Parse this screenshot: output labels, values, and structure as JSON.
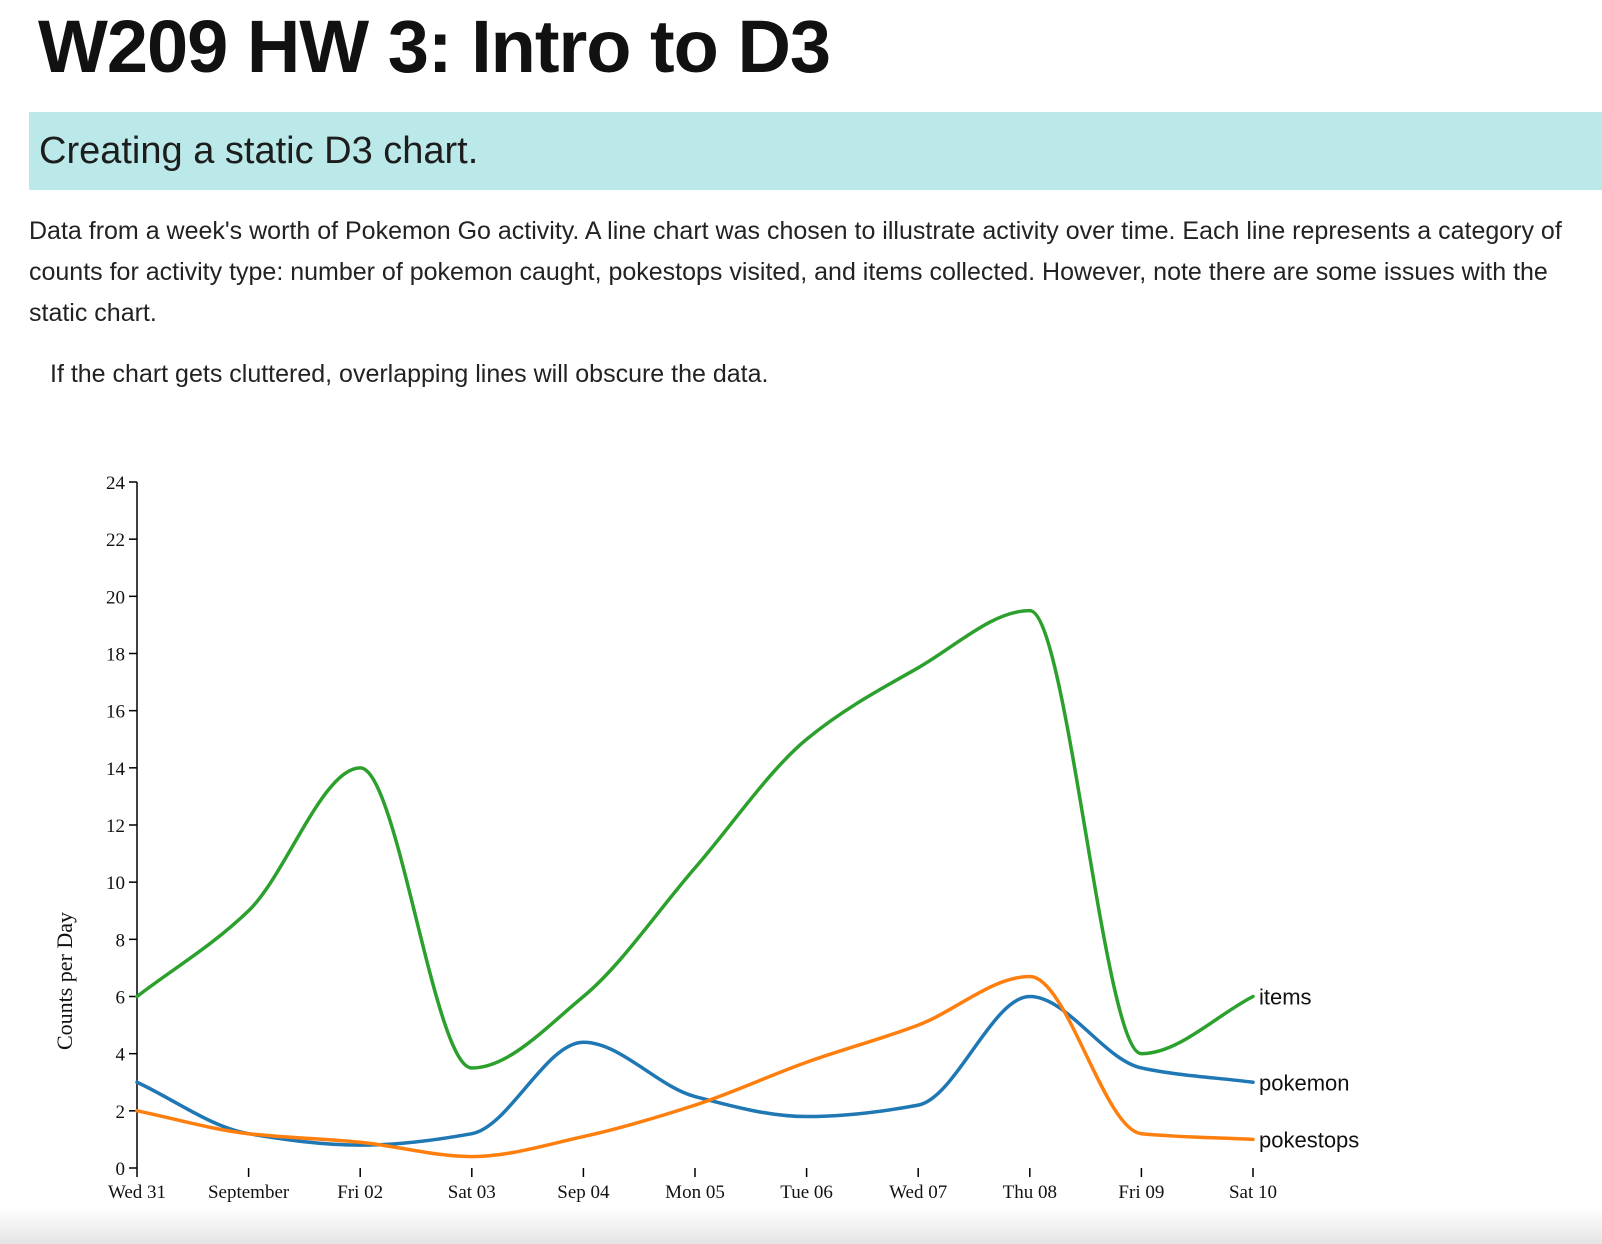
{
  "page": {
    "title": "W209 HW 3: Intro to D3",
    "subtitle": "Creating a static D3 chart.",
    "description": "Data from a week's worth of Pokemon Go activity. A line chart was chosen to illustrate activity over time. Each line represents a category of counts for activity type: number of pokemon caught, pokestops visited, and items collected. However, note there are some issues with the static chart.",
    "note": "If the chart gets cluttered, overlapping lines will obscure the data."
  },
  "chart_data": {
    "type": "line",
    "title": "",
    "xlabel": "",
    "ylabel": "Counts per Day",
    "x_tick_labels": [
      "Wed 31",
      "September",
      "Fri 02",
      "Sat 03",
      "Sep 04",
      "Mon 05",
      "Tue 06",
      "Wed 07",
      "Thu 08",
      "Fri 09",
      "Sat 10"
    ],
    "y_ticks": [
      0,
      2,
      4,
      6,
      8,
      10,
      12,
      14,
      16,
      18,
      20,
      22,
      24
    ],
    "ylim": [
      0,
      24
    ],
    "x": [
      "Aug 31",
      "Sep 01",
      "Sep 02",
      "Sep 03",
      "Sep 04",
      "Sep 05",
      "Sep 06",
      "Sep 07",
      "Sep 08",
      "Sep 09",
      "Sep 10"
    ],
    "grid": false,
    "legend": "end-of-line labels",
    "series": [
      {
        "name": "items",
        "color": "#2ca02c",
        "values": [
          6,
          9,
          14,
          3.5,
          6,
          10.5,
          15,
          17.5,
          19.5,
          4,
          6
        ]
      },
      {
        "name": "pokemon",
        "color": "#1f77b4",
        "values": [
          3,
          1.2,
          0.8,
          1.2,
          4.4,
          2.5,
          1.8,
          2.2,
          6,
          3.5,
          3
        ]
      },
      {
        "name": "pokestops",
        "color": "#ff7f0e",
        "values": [
          2,
          1.2,
          0.9,
          0.4,
          1.1,
          2.2,
          3.7,
          5,
          6.7,
          1.2,
          1
        ]
      }
    ]
  }
}
